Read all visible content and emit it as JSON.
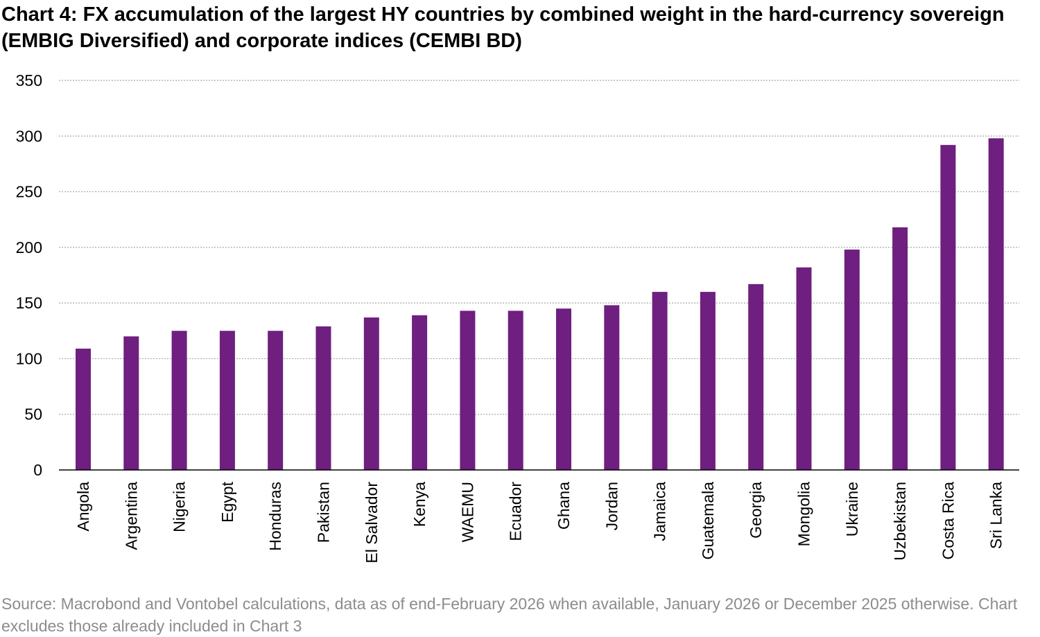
{
  "title": "Chart 4: FX accumulation of the largest HY countries by combined weight in the hard-currency sovereign (EMBIG Diversified) and corporate indices (CEMBI BD)",
  "source": "Source: Macrobond and Vontobel calculations, data as of end-February 2026 when available, January 2026 or December 2025 otherwise. Chart excludes those already included in Chart 3",
  "colors": {
    "bar": "#6f1f7f",
    "grid": "#a6a6a6",
    "axis": "#000000"
  },
  "chart_data": {
    "type": "bar",
    "title": "Chart 4: FX accumulation of the largest HY countries by combined weight in the hard-currency sovereign (EMBIG Diversified) and corporate indices (CEMBI BD)",
    "xlabel": "",
    "ylabel": "",
    "ylim": [
      0,
      350
    ],
    "yticks": [
      0,
      50,
      100,
      150,
      200,
      250,
      300,
      350
    ],
    "grid": true,
    "legend": "none",
    "categories": [
      "Angola",
      "Argentina",
      "Nigeria",
      "Egypt",
      "Honduras",
      "Pakistan",
      "El Salvador",
      "Kenya",
      "WAEMU",
      "Ecuador",
      "Ghana",
      "Jordan",
      "Jamaica",
      "Guatemala",
      "Georgia",
      "Mongolia",
      "Ukraine",
      "Uzbekistan",
      "Costa Rica",
      "Sri Lanka"
    ],
    "values": [
      109,
      120,
      125,
      125,
      125,
      129,
      137,
      139,
      143,
      143,
      145,
      148,
      160,
      160,
      167,
      182,
      198,
      218,
      292,
      298
    ]
  }
}
